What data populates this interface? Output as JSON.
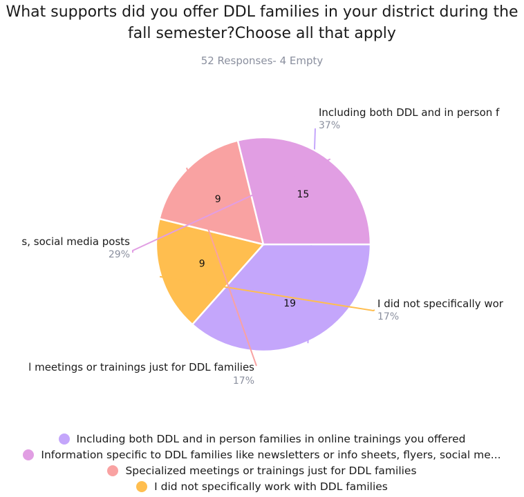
{
  "chart_data": {
    "type": "pie",
    "title": "What supports did you offer DDL families in your district during the fall semester?Choose all that apply",
    "subtitle": "52 Responses- 4 Empty",
    "slices": [
      {
        "label": "Including both DDL and in person families in  online trainings you offered",
        "value": 19,
        "percent": "37%",
        "color": "#c4a6fb"
      },
      {
        "label": "I did not specifically work with DDL families",
        "value": 9,
        "percent": "17%",
        "color": "#ffbe4f"
      },
      {
        "label": "Specialized meetings or trainings just for DDL families",
        "value": 9,
        "percent": "17%",
        "color": "#f9a2a2"
      },
      {
        "label": "Information specific to DDL families like newsletters or info sheets, flyers, social media posts",
        "value": 15,
        "percent": "29%",
        "color": "#e19ee3"
      }
    ],
    "callouts": [
      {
        "text": "Including both DDL and in person f",
        "percent": "37%"
      },
      {
        "text": "I did not specifically wor",
        "percent": "17%"
      },
      {
        "text": "l meetings or trainings just for DDL families",
        "percent": "17%"
      },
      {
        "text": "s, social media posts",
        "percent": "29%"
      }
    ],
    "legend": [
      {
        "label": "Including both DDL and in person families in  online trainings you offered",
        "color": "#c4a6fb"
      },
      {
        "label": "Information specific to DDL families like newsletters or info sheets, flyers, social me...",
        "color": "#e19ee3"
      },
      {
        "label": "Specialized meetings or trainings just for DDL families",
        "color": "#f9a2a2"
      },
      {
        "label": "I did not specifically work with DDL families",
        "color": "#ffbe4f"
      }
    ],
    "legend_position": "bottom"
  }
}
